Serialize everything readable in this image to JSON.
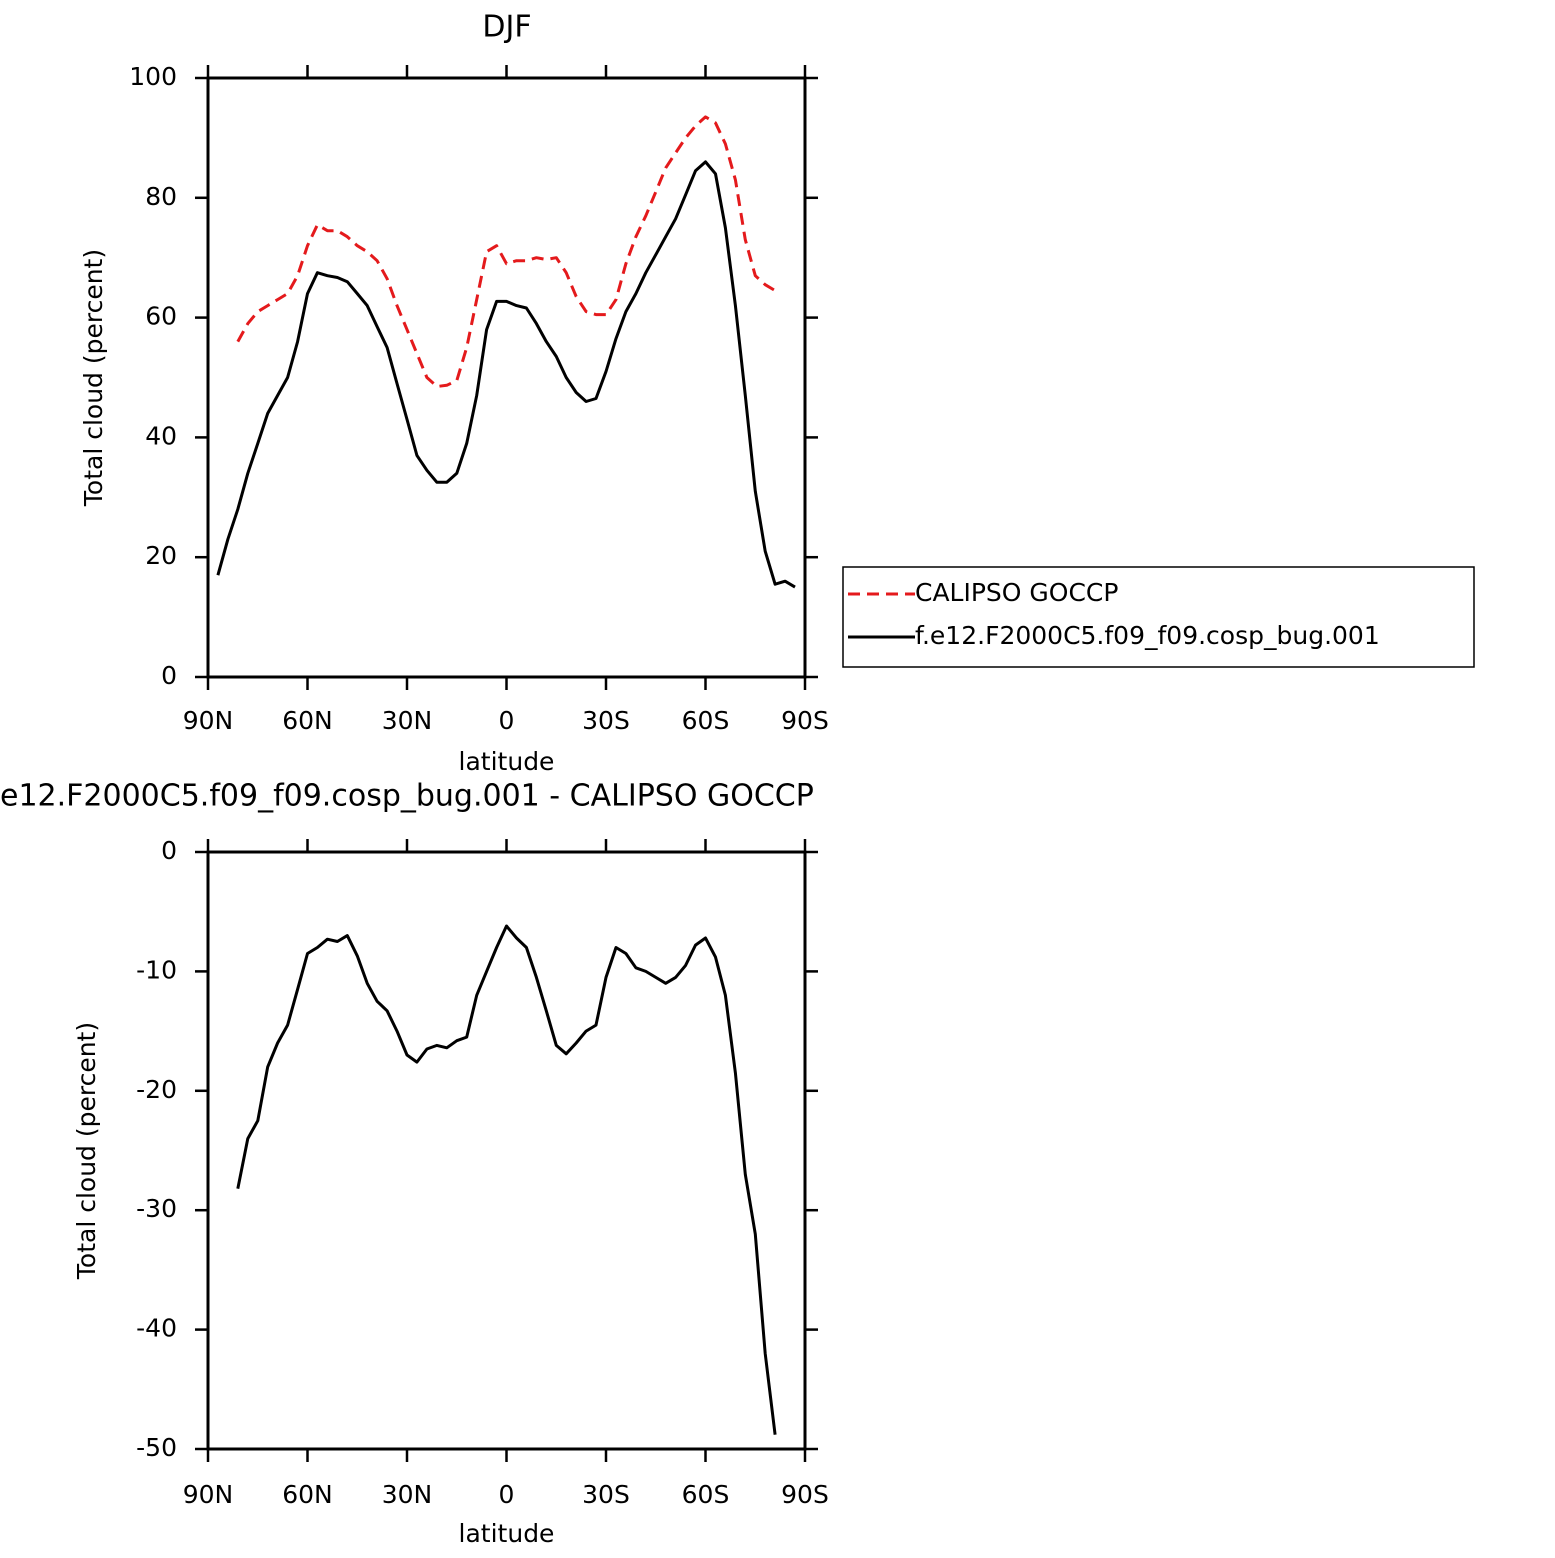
{
  "chart_data": [
    {
      "type": "line",
      "title": "DJF",
      "xlabel": "latitude",
      "ylabel": "Total cloud (percent)",
      "x": [
        87,
        84,
        81,
        78,
        75,
        72,
        69,
        66,
        63,
        60,
        57,
        54,
        51,
        48,
        45,
        42,
        39,
        36,
        33,
        30,
        27,
        24,
        21,
        18,
        15,
        12,
        9,
        6,
        3,
        0,
        -3,
        -6,
        -9,
        -12,
        -15,
        -18,
        -21,
        -24,
        -27,
        -30,
        -33,
        -36,
        -39,
        -42,
        -45,
        -48,
        -51,
        -54,
        -57,
        -60,
        -63,
        -66,
        -69,
        -72,
        -75,
        -78,
        -81,
        -84,
        -87
      ],
      "series": [
        {
          "name": "CALIPSO GOCCP",
          "color": "#e41a1c",
          "dashed": true,
          "values": [
            null,
            null,
            56,
            59,
            61,
            62,
            63,
            64,
            67,
            72,
            75.5,
            74.5,
            74.5,
            73.5,
            72,
            71,
            69.5,
            66.5,
            62,
            58,
            54,
            50,
            48.5,
            48.7,
            49.5,
            55,
            63,
            71,
            72,
            69,
            69.5,
            69.5,
            70,
            69.7,
            70,
            67.5,
            63.5,
            61,
            60.5,
            60.5,
            63,
            69,
            73.5,
            77,
            81,
            85,
            87.5,
            90,
            92,
            93.5,
            92.5,
            89,
            83,
            73,
            67,
            65.5,
            64.5,
            null,
            null
          ]
        },
        {
          "name": "f.e12.F2000C5.f09_f09.cosp_bug.001",
          "color": "#000000",
          "dashed": false,
          "values": [
            17,
            23,
            28,
            34,
            39,
            44,
            47,
            50,
            56,
            64,
            67.5,
            67,
            66.7,
            66,
            64,
            62,
            58.5,
            55,
            49,
            43,
            37,
            34.5,
            32.5,
            32.5,
            34,
            39,
            47,
            58,
            62.7,
            62.7,
            62,
            61.6,
            59,
            56,
            53.5,
            50,
            47.5,
            46,
            46.5,
            51,
            56.5,
            61,
            64,
            67.5,
            70.5,
            73.5,
            76.5,
            80.5,
            84.5,
            86,
            84,
            75,
            62,
            47,
            31,
            21,
            15.5,
            16,
            15
          ]
        }
      ],
      "xlim": [
        90,
        -90
      ],
      "xticks": [
        {
          "value": 90,
          "label": "90N"
        },
        {
          "value": 60,
          "label": "60N"
        },
        {
          "value": 30,
          "label": "30N"
        },
        0,
        {
          "value": -30,
          "label": "30S"
        },
        {
          "value": -60,
          "label": "60S"
        },
        {
          "value": -90,
          "label": "90S"
        }
      ],
      "ylim": [
        0,
        100
      ],
      "yticks": [
        0,
        20,
        40,
        60,
        80,
        100
      ],
      "legend": "right"
    },
    {
      "type": "line",
      "title": "e12.F2000C5.f09_f09.cosp_bug.001 - CALIPSO GOCCP",
      "xlabel": "latitude",
      "ylabel": "Total cloud (percent)",
      "x": [
        87,
        84,
        81,
        78,
        75,
        72,
        69,
        66,
        63,
        60,
        57,
        54,
        51,
        48,
        45,
        42,
        39,
        36,
        33,
        30,
        27,
        24,
        21,
        18,
        15,
        12,
        9,
        6,
        3,
        0,
        -3,
        -6,
        -9,
        -12,
        -15,
        -18,
        -21,
        -24,
        -27,
        -30,
        -33,
        -36,
        -39,
        -42,
        -45,
        -48,
        -51,
        -54,
        -57,
        -60,
        -63,
        -66,
        -69,
        -72,
        -75,
        -78,
        -81,
        -84,
        -87
      ],
      "values": [
        null,
        null,
        -28.2,
        -24,
        -22.5,
        -18,
        -16,
        -14.5,
        -11.5,
        -8.5,
        -8,
        -7.3,
        -7.5,
        -7,
        -8.7,
        -11,
        -12.5,
        -13.3,
        -15,
        -17,
        -17.6,
        -16.5,
        -16.2,
        -16.4,
        -15.8,
        -15.5,
        -12,
        -10,
        -8,
        -6.2,
        -7.2,
        -8,
        -10.5,
        -13.3,
        -16.2,
        -16.9,
        -16,
        -15,
        -14.5,
        -10.5,
        -8,
        -8.5,
        -9.7,
        -10,
        -10.5,
        -11,
        -10.5,
        -9.5,
        -7.8,
        -7.2,
        -8.8,
        -12,
        -18.5,
        -27,
        -32,
        -42,
        -48.8,
        null,
        null
      ],
      "color": "#000000",
      "xlim": [
        90,
        -90
      ],
      "xticks": [
        {
          "value": 90,
          "label": "90N"
        },
        {
          "value": 60,
          "label": "60N"
        },
        {
          "value": 30,
          "label": "30N"
        },
        0,
        {
          "value": -30,
          "label": "30S"
        },
        {
          "value": -60,
          "label": "60S"
        },
        {
          "value": -90,
          "label": "90S"
        }
      ],
      "ylim": [
        -50,
        0
      ],
      "yticks": [
        -50,
        -40,
        -30,
        -20,
        -10,
        0
      ]
    }
  ]
}
